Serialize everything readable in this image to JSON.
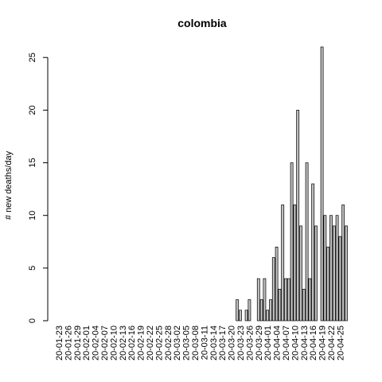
{
  "chart_data": {
    "type": "bar",
    "title": "colombia",
    "y_label": "# new deaths/day",
    "categories": [
      "20-01-23",
      null,
      null,
      "20-01-26",
      null,
      null,
      "20-01-29",
      null,
      null,
      "20-02-01",
      null,
      null,
      "20-02-04",
      null,
      null,
      "20-02-07",
      null,
      null,
      "20-02-10",
      null,
      null,
      "20-02-13",
      null,
      null,
      "20-02-16",
      null,
      null,
      "20-02-19",
      null,
      null,
      "20-02-22",
      null,
      null,
      "20-02-25",
      null,
      null,
      "20-02-28",
      null,
      null,
      "20-03-02",
      null,
      null,
      "20-03-05",
      null,
      null,
      "20-03-08",
      null,
      null,
      "20-03-11",
      null,
      null,
      "20-03-14",
      null,
      null,
      "20-03-17",
      null,
      null,
      "20-03-20",
      null,
      null,
      "20-03-23",
      null,
      null,
      "20-03-26",
      null,
      null,
      "20-03-29",
      null,
      null,
      "20-04-01",
      null,
      null,
      "20-04-04",
      null,
      null,
      "20-04-07",
      null,
      null,
      "20-04-10",
      null,
      null,
      "20-04-13",
      null,
      null,
      "20-04-16",
      null,
      null,
      "20-04-19",
      null,
      null,
      "20-04-22",
      null,
      null,
      "20-04-25",
      null,
      null
    ],
    "values": [
      0,
      0,
      0,
      0,
      0,
      0,
      0,
      0,
      0,
      0,
      0,
      0,
      0,
      0,
      0,
      0,
      0,
      0,
      0,
      0,
      0,
      0,
      0,
      0,
      0,
      0,
      0,
      0,
      0,
      0,
      0,
      0,
      0,
      0,
      0,
      0,
      0,
      0,
      0,
      0,
      0,
      0,
      0,
      0,
      0,
      0,
      0,
      0,
      0,
      0,
      0,
      0,
      0,
      0,
      0,
      0,
      0,
      0,
      0,
      2,
      1,
      0,
      1,
      2,
      0,
      0,
      4,
      2,
      4,
      1,
      2,
      6,
      7,
      3,
      11,
      4,
      4,
      15,
      11,
      20,
      9,
      3,
      15,
      4,
      13,
      9,
      0,
      26,
      10,
      7,
      10,
      9,
      10,
      8,
      11,
      9
    ],
    "color": "#bebebe",
    "ylim": [
      0,
      26
    ],
    "yticks": [
      0,
      5,
      10,
      15,
      20,
      25
    ]
  }
}
